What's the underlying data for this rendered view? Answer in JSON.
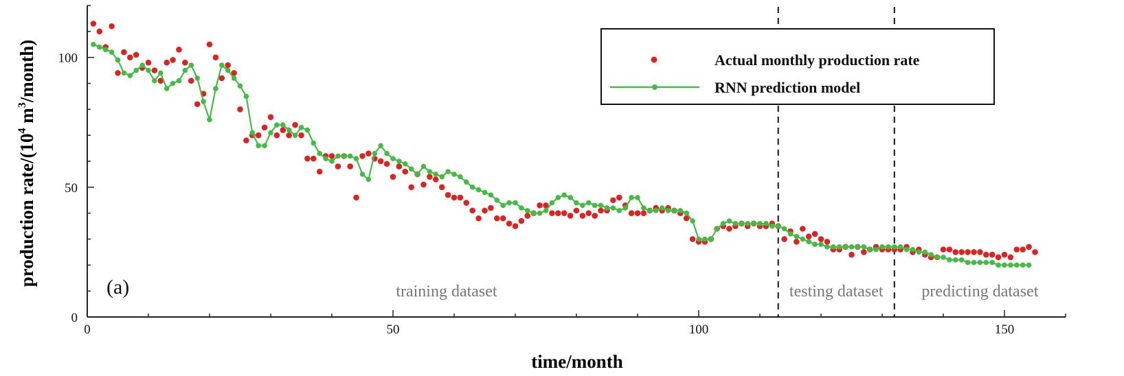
{
  "chart_data": {
    "type": "line",
    "panel_label": "(a)",
    "xlabel": "time/month",
    "ylabel": "production rate/(10",
    "ylabel_exp1": "4",
    "ylabel_mid": " m",
    "ylabel_exp2": "3",
    "ylabel_end": "/month)",
    "xlim": [
      0,
      160
    ],
    "ylim": [
      0,
      120
    ],
    "x_ticks": [
      0,
      50,
      100,
      150
    ],
    "x_tick_labels": [
      "0",
      "50",
      "100",
      "150"
    ],
    "y_ticks": [
      0,
      50,
      100
    ],
    "y_tick_labels": [
      "0",
      "50",
      "100"
    ],
    "grid": false,
    "legend_position": "top-right",
    "regions": [
      {
        "label": "training dataset",
        "x_start": 0,
        "x_end": 113
      },
      {
        "label": "testing dataset",
        "x_start": 113,
        "x_end": 132
      },
      {
        "label": "predicting dataset",
        "x_start": 132,
        "x_end": 160
      }
    ],
    "dividers": [
      113,
      132
    ],
    "series": [
      {
        "name": "Actual monthly production rate",
        "style": "markers",
        "color": "#dd2222",
        "values": [
          113,
          110,
          104,
          112,
          94,
          102,
          100,
          101,
          96,
          98,
          95,
          91,
          98,
          99,
          103,
          98,
          91,
          82,
          86,
          105,
          100,
          92,
          97,
          94,
          80,
          68,
          70,
          70,
          73,
          77,
          70,
          72,
          70,
          74,
          70,
          61,
          61,
          56,
          62,
          62,
          58,
          62,
          58,
          46,
          62,
          63,
          61,
          60,
          59,
          54,
          58,
          56,
          50,
          55,
          51,
          54,
          53,
          50,
          47,
          46,
          46,
          44,
          41,
          38,
          41,
          42,
          38,
          38,
          36,
          35,
          37,
          39,
          40,
          43,
          43,
          40,
          40,
          40,
          39,
          41,
          39,
          40,
          39,
          41,
          41,
          45,
          46,
          43,
          40,
          40,
          40,
          41,
          42,
          41,
          42,
          41,
          40,
          38,
          30,
          29,
          29,
          30,
          34,
          35,
          34,
          35,
          36,
          35,
          36,
          35,
          35,
          36,
          35,
          30,
          33,
          29,
          34,
          31,
          32,
          30,
          29,
          26,
          26,
          27,
          24,
          27,
          25,
          26,
          27,
          26,
          26,
          26,
          26,
          27,
          25,
          26,
          24,
          23,
          23,
          26,
          26,
          25,
          25,
          25,
          25,
          25,
          24,
          24,
          23,
          24,
          23,
          26,
          26,
          27,
          25
        ]
      },
      {
        "name": "RNN prediction model",
        "style": "line-markers",
        "color": "#44bb44",
        "values": [
          105,
          104,
          103,
          102,
          99,
          94,
          93,
          95,
          97,
          95,
          91,
          94,
          88,
          90,
          91,
          95,
          97,
          92,
          83,
          76,
          88,
          97,
          95,
          92,
          89,
          85,
          71,
          66,
          66,
          71,
          74,
          74,
          72,
          70,
          73,
          72,
          67,
          63,
          61,
          60,
          62,
          62,
          62,
          61,
          55,
          53,
          63,
          66,
          63,
          61,
          60,
          59,
          57,
          55,
          58,
          56,
          55,
          54,
          56,
          55,
          54,
          52,
          50,
          49,
          48,
          47,
          45,
          43,
          44,
          44,
          42,
          41,
          40,
          40,
          41,
          44,
          46,
          47,
          46,
          44,
          43,
          44,
          43,
          43,
          42,
          42,
          41,
          42,
          46,
          46,
          42,
          41,
          41,
          42,
          41,
          41,
          41,
          40,
          37,
          30,
          30,
          30,
          34,
          36,
          37,
          36,
          36,
          36,
          36,
          36,
          36,
          35,
          35,
          34,
          32,
          31,
          30,
          29,
          28,
          28,
          27,
          27,
          27,
          27,
          27,
          27,
          27,
          26,
          26,
          27,
          27,
          27,
          27,
          26,
          26,
          25,
          25,
          24,
          23,
          23,
          22,
          22,
          22,
          21,
          21,
          21,
          21,
          21,
          20,
          20,
          20,
          20,
          20,
          20
        ]
      }
    ]
  }
}
